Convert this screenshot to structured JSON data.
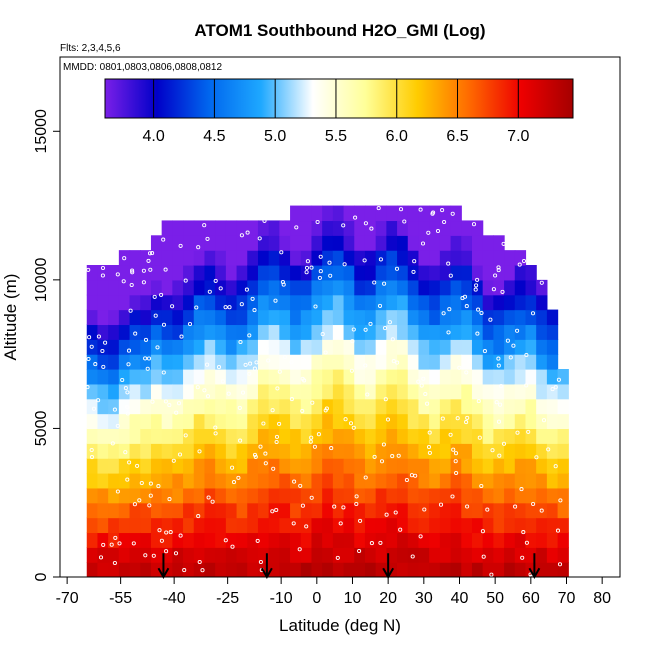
{
  "chart_data": {
    "type": "heatmap",
    "title": "ATOM1 Southbound H2O_GMI (Log)",
    "subtitle_flights": "Flts: 2,3,4,5,6",
    "subtitle_dates": "MMDD: 0801,0803,0806,0808,0812",
    "xlabel": "Latitude (deg N)",
    "ylabel": "Altitude (m)",
    "xlim": [
      -72,
      85
    ],
    "ylim": [
      0,
      17500
    ],
    "x_ticks": [
      -70,
      -55,
      -40,
      -25,
      -10,
      0,
      10,
      20,
      30,
      40,
      50,
      60,
      70,
      80
    ],
    "x_tick_labels": [
      "-70",
      "-55",
      "-40",
      "-25",
      "-10",
      "0",
      "10",
      "20",
      "30",
      "40",
      "50",
      "60",
      "70",
      "80"
    ],
    "y_ticks": [
      0,
      5000,
      10000,
      15000
    ],
    "y_tick_labels": [
      "0",
      "5000",
      "10000",
      "15000"
    ],
    "colorbar": {
      "min": 3.6,
      "max": 7.45,
      "ticks": [
        4.0,
        4.5,
        5.0,
        5.5,
        6.0,
        6.5,
        7.0
      ],
      "tick_labels": [
        "4.0",
        "4.5",
        "5.0",
        "5.5",
        "6.0",
        "6.5",
        "7.0"
      ],
      "colors": [
        "#7a1fe8",
        "#0000c8",
        "#0066ee",
        "#1ea8ff",
        "#ffffff",
        "#ffff99",
        "#ffcc00",
        "#ff6a00",
        "#ee0000",
        "#a50000"
      ]
    },
    "grid": {
      "lat_start": -69,
      "lat_step": 3,
      "lat_count": 47,
      "alt_step": 500,
      "top_altitudes": [
        0,
        0,
        10500,
        10500,
        10500,
        11000,
        11000,
        11000,
        11500,
        12000,
        12000,
        12000,
        12000,
        12000,
        12000,
        12000,
        12000,
        12000,
        12000,
        12000,
        12000,
        12500,
        12500,
        12500,
        12500,
        12500,
        12500,
        12500,
        12500,
        12500,
        12500,
        12500,
        12500,
        12500,
        12500,
        12500,
        12500,
        12000,
        12000,
        11500,
        11500,
        11000,
        11000,
        10500,
        10000,
        9000,
        7000
      ]
    },
    "flight_points_note": "white circles mark sampled flight-track points",
    "arrow_markers_lat": [
      -43,
      -14,
      20,
      61
    ]
  }
}
